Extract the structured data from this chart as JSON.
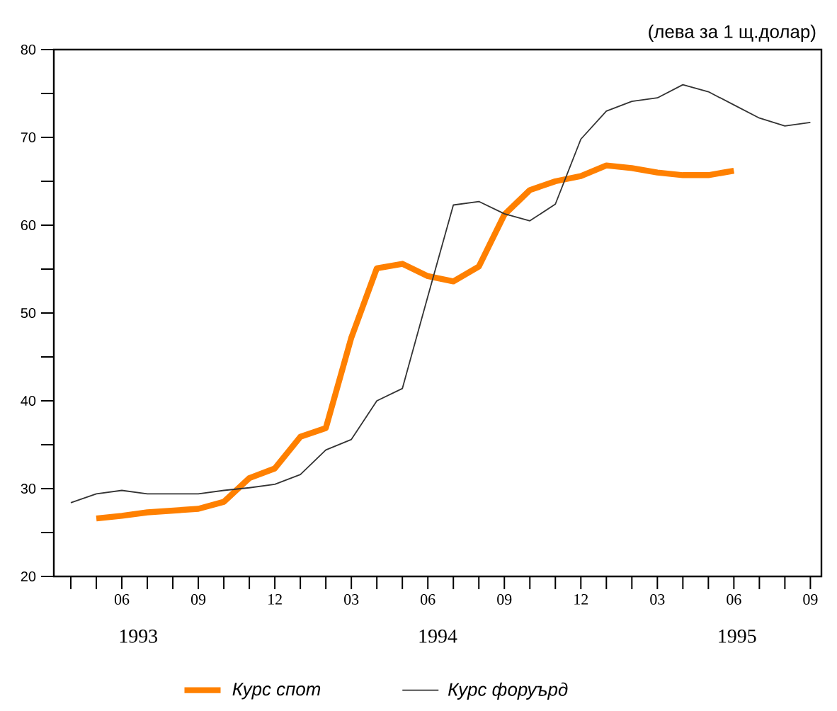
{
  "chart_data": {
    "type": "line",
    "ylabel": "(лева за 1 щ.долар)",
    "annotations": [
      "1993",
      "1994",
      "1995"
    ],
    "legend": "bottom",
    "xlim": [
      "1993-03-11",
      "1995-09-14"
    ],
    "ylim": [
      20,
      80
    ],
    "yticks": [
      20,
      {
        "value": 25,
        "label": null
      },
      30,
      {
        "value": 35,
        "label": null
      },
      40,
      {
        "value": 45,
        "label": null
      },
      50,
      {
        "value": 55,
        "label": null
      },
      60,
      {
        "value": 65,
        "label": null
      },
      70,
      {
        "value": 75,
        "label": null
      },
      80
    ],
    "xticks": [
      {
        "value": "1993-04",
        "label": null
      },
      {
        "value": "1993-05",
        "label": null
      },
      {
        "value": "1993-06",
        "label": "06"
      },
      {
        "value": "1993-07",
        "label": null
      },
      {
        "value": "1993-08",
        "label": null
      },
      {
        "value": "1993-09",
        "label": "09"
      },
      {
        "value": "1993-10",
        "label": null
      },
      {
        "value": "1993-11",
        "label": null
      },
      {
        "value": "1993-12",
        "label": "12"
      },
      {
        "value": "1994-01",
        "label": null
      },
      {
        "value": "1994-02",
        "label": null
      },
      {
        "value": "1994-03",
        "label": "03"
      },
      {
        "value": "1994-04",
        "label": null
      },
      {
        "value": "1994-05",
        "label": null
      },
      {
        "value": "1994-06",
        "label": "06"
      },
      {
        "value": "1994-07",
        "label": null
      },
      {
        "value": "1994-08",
        "label": null
      },
      {
        "value": "1994-09",
        "label": "09"
      },
      {
        "value": "1994-10",
        "label": null
      },
      {
        "value": "1994-11",
        "label": null
      },
      {
        "value": "1994-12",
        "label": "12"
      },
      {
        "value": "1995-01",
        "label": null
      },
      {
        "value": "1995-02",
        "label": null
      },
      {
        "value": "1995-03",
        "label": "03"
      },
      {
        "value": "1995-04",
        "label": null
      },
      {
        "value": "1995-05",
        "label": null
      },
      {
        "value": "1995-06",
        "label": "06"
      },
      {
        "value": "1995-07",
        "label": null
      },
      {
        "value": "1995-08",
        "label": null
      },
      {
        "value": "1995-09",
        "label": "09"
      }
    ],
    "series": [
      {
        "name": "Курс спот",
        "color": "#ff8000",
        "x": [
          "1993-05",
          "1993-06",
          "1993-07",
          "1993-08",
          "1993-09",
          "1993-10",
          "1993-11",
          "1993-12",
          "1994-01",
          "1994-02",
          "1994-03",
          "1994-04",
          "1994-05",
          "1994-06",
          "1994-07",
          "1994-08",
          "1994-09",
          "1994-10",
          "1994-11",
          "1994-12",
          "1995-01",
          "1995-02",
          "1995-03",
          "1995-04",
          "1995-05",
          "1995-06"
        ],
        "values": [
          26.6,
          26.9,
          27.3,
          27.5,
          27.7,
          28.5,
          31.2,
          32.3,
          35.9,
          36.9,
          47.2,
          55.1,
          55.6,
          54.2,
          53.6,
          55.3,
          61.2,
          64.0,
          65.0,
          65.6,
          66.8,
          66.5,
          66.0,
          65.7,
          65.7,
          66.2
        ]
      },
      {
        "name": "Курс форуърд",
        "color": "#333333",
        "x": [
          "1993-04",
          "1993-05",
          "1993-06",
          "1993-07",
          "1993-08",
          "1993-09",
          "1993-10",
          "1993-11",
          "1993-12",
          "1994-01",
          "1994-02",
          "1994-03",
          "1994-04",
          "1994-05",
          "1994-06",
          "1994-07",
          "1994-08",
          "1994-09",
          "1994-10",
          "1994-11",
          "1994-12",
          "1995-01",
          "1995-02",
          "1995-03",
          "1995-04",
          "1995-05",
          "1995-06",
          "1995-07",
          "1995-08",
          "1995-09"
        ],
        "values": [
          28.4,
          29.4,
          29.8,
          29.4,
          29.4,
          29.4,
          29.8,
          30.1,
          30.5,
          31.6,
          34.4,
          35.6,
          40.0,
          41.4,
          51.9,
          62.3,
          62.7,
          61.3,
          60.5,
          62.4,
          69.8,
          73.0,
          74.1,
          74.5,
          76.0,
          75.2,
          73.7,
          72.2,
          71.3,
          71.7
        ]
      }
    ]
  }
}
